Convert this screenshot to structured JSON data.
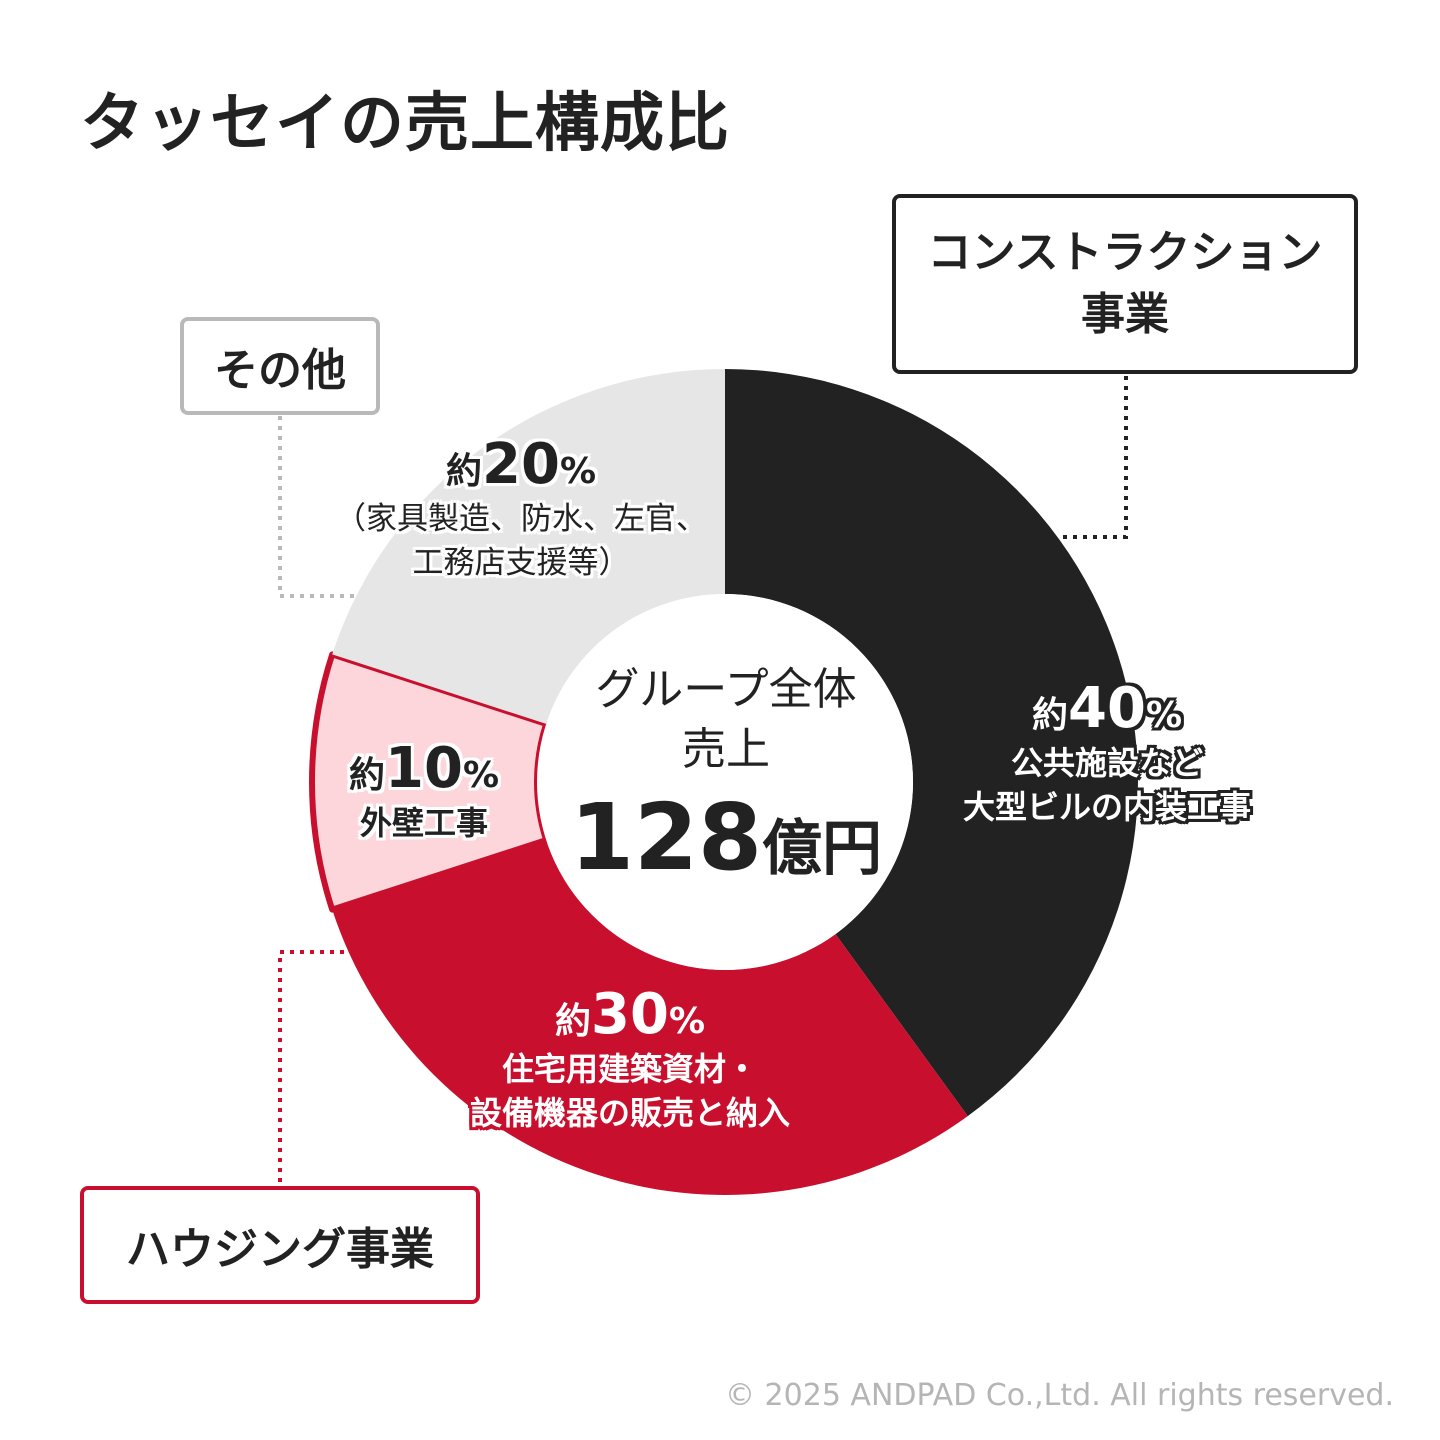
{
  "title": "タッセイの売上構成比",
  "center": {
    "label_line1": "グループ全体",
    "label_line2": "売上",
    "value": "128",
    "unit": "億円"
  },
  "colors": {
    "construction": "#222222",
    "housing_main": "#c8102e",
    "housing_exterior": "#fcd6db",
    "other": "#e6e6e6",
    "text_dark": "#222222",
    "copyright": "#b5b5b5"
  },
  "chart_data": {
    "type": "pie",
    "title": "タッセイの売上構成比",
    "total": "128億円",
    "slices": [
      {
        "name": "コンストラクション事業",
        "value": 40,
        "label": "約40%",
        "description": "公共施設など大型ビルの内装工事"
      },
      {
        "name": "ハウジング事業",
        "value": 30,
        "label": "約30%",
        "description": "住宅用建築資材・設備機器の販売と納入"
      },
      {
        "name": "ハウジング事業",
        "value": 10,
        "label": "約10%",
        "description": "外壁工事"
      },
      {
        "name": "その他",
        "value": 20,
        "label": "約20%",
        "description": "（家具製造、防水、左官、工務店支援等）"
      }
    ]
  },
  "boxes": {
    "construction_line1": "コンストラクション",
    "construction_line2": "事業",
    "other": "その他",
    "housing": "ハウジング事業"
  },
  "labels": {
    "construction": {
      "prefix": "約",
      "number": "40",
      "symbol": "%",
      "line1": "公共施設など",
      "line2": "大型ビルの内装工事"
    },
    "housing_main": {
      "prefix": "約",
      "number": "30",
      "symbol": "%",
      "line1": "住宅用建築資材・",
      "line2": "設備機器の販売と納入"
    },
    "housing_exterior": {
      "prefix": "約",
      "number": "10",
      "symbol": "%",
      "line1": "外壁工事"
    },
    "other": {
      "prefix": "約",
      "number": "20",
      "symbol": "%",
      "line1": "（家具製造、防水、左官、",
      "line2": "工務店支援等）"
    }
  },
  "copyright": "© 2025 ANDPAD Co.,Ltd. All rights reserved."
}
